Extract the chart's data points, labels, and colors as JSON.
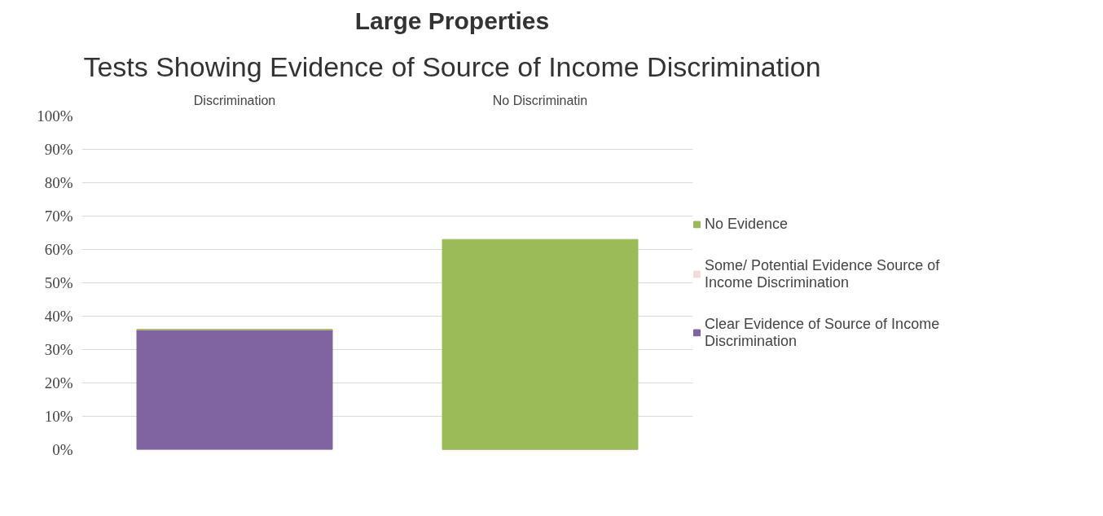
{
  "chart_data": {
    "type": "bar",
    "title": "Large Properties",
    "subtitle": "Tests Showing Evidence of Source of Income Discrimination",
    "categories": [
      "Discrimination",
      "No Discriminatin"
    ],
    "stacked": true,
    "series": [
      {
        "name": "Clear Evidence of Source of Income Discrimination",
        "color": "#8064a2",
        "values": [
          36,
          0
        ]
      },
      {
        "name": "Some/ Potential Evidence Source of Income Discrimination",
        "color": "#f2dcdb",
        "values": [
          0,
          0
        ]
      },
      {
        "name": "No Evidence",
        "color": "#9bbb59",
        "values": [
          0,
          63
        ]
      }
    ],
    "ylim": [
      0,
      100
    ],
    "yticks": [
      {
        "value": 0,
        "label": "0%"
      },
      {
        "value": 10,
        "label": "10%"
      },
      {
        "value": 20,
        "label": "20%"
      },
      {
        "value": 30,
        "label": "30%"
      },
      {
        "value": 40,
        "label": "40%"
      },
      {
        "value": 50,
        "label": "50%"
      },
      {
        "value": 60,
        "label": "60%"
      },
      {
        "value": 70,
        "label": "70%"
      },
      {
        "value": 80,
        "label": "80%"
      },
      {
        "value": 90,
        "label": "90%"
      },
      {
        "value": 100,
        "label": "100%"
      }
    ],
    "grid": "y",
    "legend": "right"
  }
}
